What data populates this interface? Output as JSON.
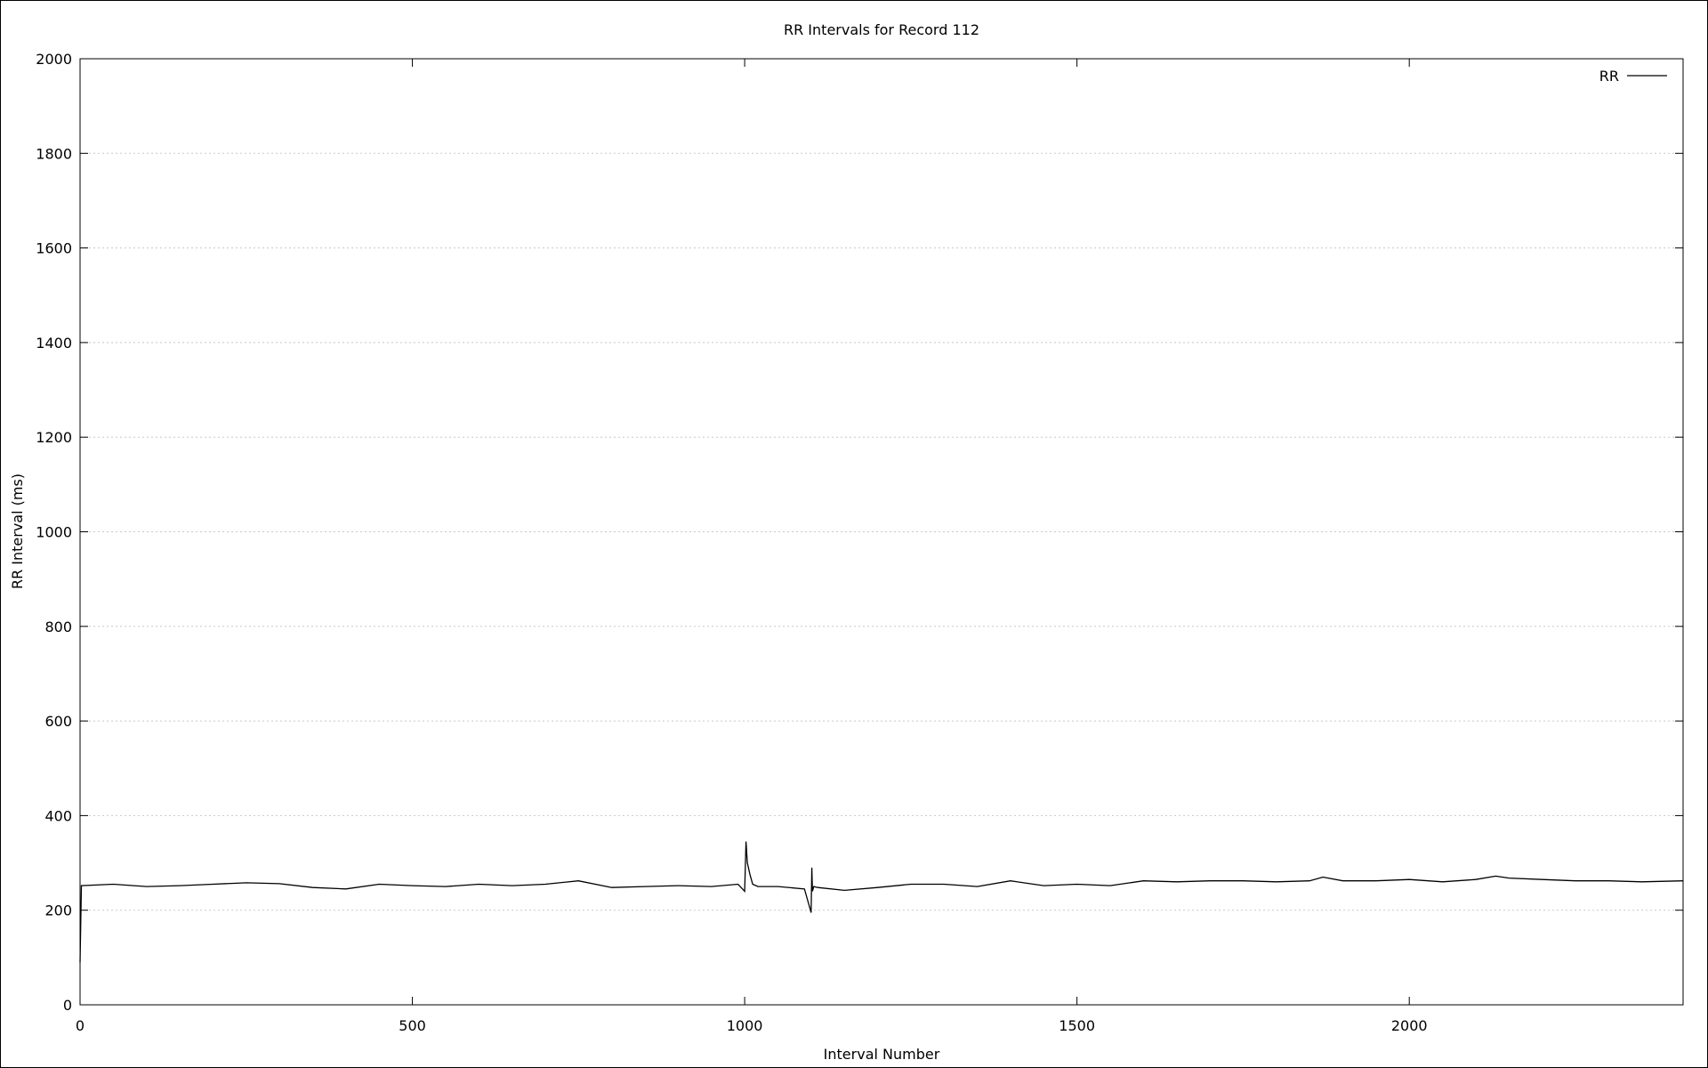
{
  "chart_data": {
    "type": "line",
    "title": "RR Intervals for Record 112",
    "xlabel": "Interval Number",
    "ylabel": "RR Interval (ms)",
    "xlim": [
      0,
      2412
    ],
    "ylim": [
      0,
      2000
    ],
    "x_ticks": [
      0,
      500,
      1000,
      1500,
      2000
    ],
    "y_ticks": [
      0,
      200,
      400,
      600,
      800,
      1000,
      1200,
      1400,
      1600,
      1800,
      2000
    ],
    "grid": "horizontal dotted",
    "legend_position": "top-right",
    "series": [
      {
        "name": "RR",
        "color": "#000000",
        "x": [
          0,
          2,
          50,
          100,
          150,
          200,
          250,
          300,
          350,
          400,
          450,
          500,
          550,
          600,
          650,
          700,
          750,
          800,
          850,
          900,
          950,
          990,
          1000,
          1002,
          1004,
          1008,
          1012,
          1020,
          1050,
          1090,
          1100,
          1101,
          1102,
          1104,
          1110,
          1150,
          1200,
          1250,
          1300,
          1350,
          1400,
          1450,
          1500,
          1550,
          1600,
          1650,
          1700,
          1750,
          1800,
          1850,
          1870,
          1900,
          1950,
          2000,
          2050,
          2100,
          2130,
          2150,
          2200,
          2250,
          2300,
          2350,
          2412
        ],
        "y": [
          90,
          252,
          255,
          250,
          252,
          255,
          258,
          256,
          248,
          245,
          255,
          252,
          250,
          255,
          252,
          255,
          262,
          248,
          250,
          252,
          250,
          255,
          240,
          345,
          300,
          275,
          255,
          250,
          250,
          245,
          195,
          290,
          240,
          250,
          248,
          242,
          248,
          255,
          255,
          250,
          262,
          252,
          255,
          252,
          262,
          260,
          262,
          262,
          260,
          262,
          270,
          262,
          262,
          265,
          260,
          265,
          272,
          268,
          265,
          262,
          262,
          260,
          262
        ]
      }
    ]
  }
}
